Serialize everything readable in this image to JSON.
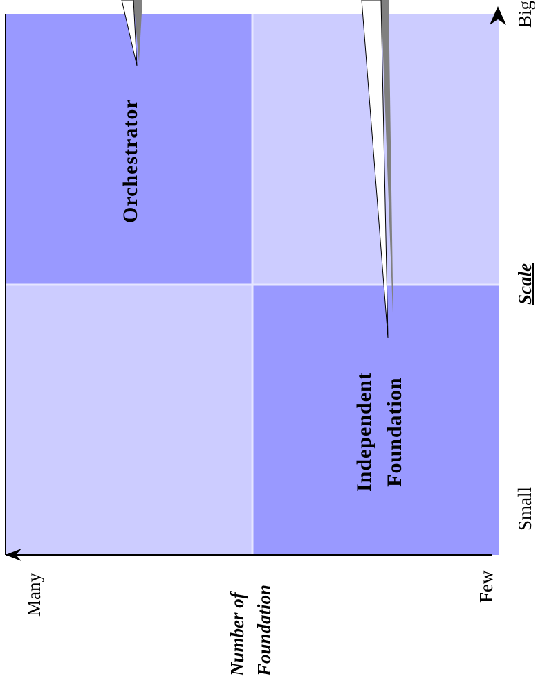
{
  "quadrants": {
    "top_left": {
      "label": "Orchestrator"
    },
    "bottom_right": {
      "line1": "Independent",
      "line2": "Foundation"
    }
  },
  "scale_axis": {
    "title": "Scale",
    "low": "Small",
    "high": "Big"
  },
  "count_axis": {
    "title_line1": "Number of",
    "title_line2": "Foundation",
    "high": "Many",
    "low": "Few"
  },
  "colors": {
    "dark_cell": "#9999ff",
    "light_cell": "#ccccff",
    "grid_line": "#e6e6ff",
    "callout_fill": "#ffffff",
    "callout_shadow": "#808080"
  }
}
